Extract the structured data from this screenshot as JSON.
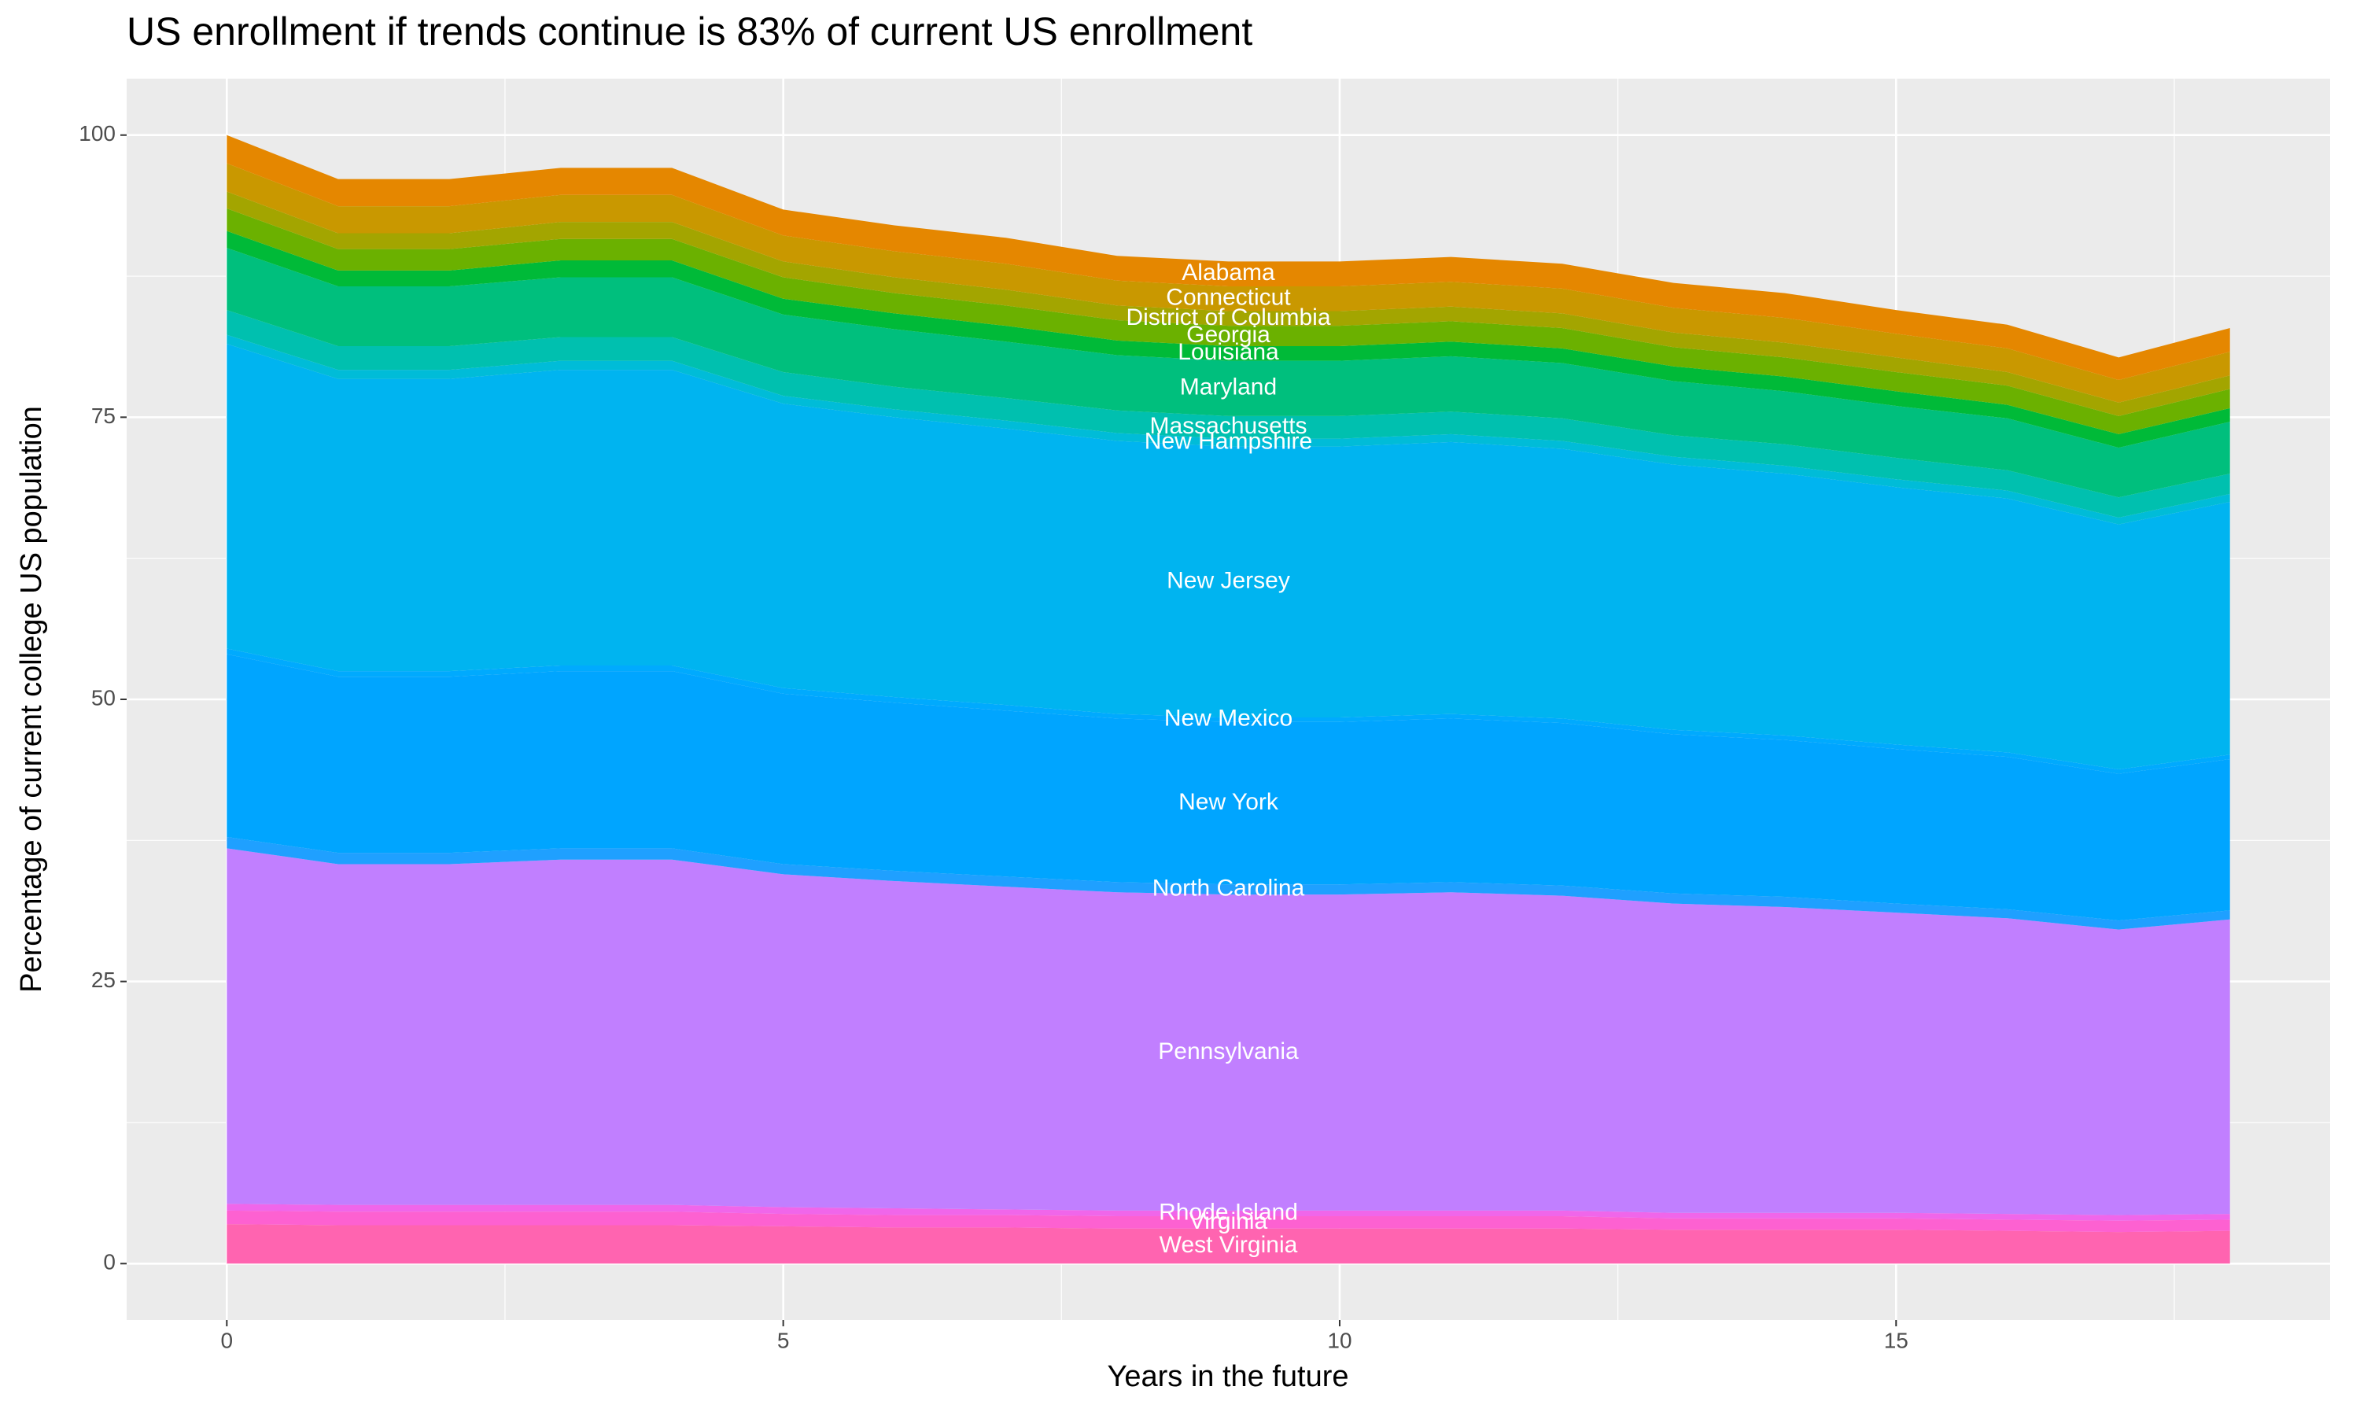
{
  "chart_data": {
    "type": "stacked_area",
    "title": "US enrollment if trends continue is 83% of current US enrollment",
    "x_label": "Years in the future",
    "y_label": "Percentage of current college US population",
    "x": [
      0,
      1,
      2,
      3,
      4,
      5,
      6,
      7,
      8,
      9,
      10,
      11,
      12,
      13,
      14,
      15,
      16,
      17,
      18
    ],
    "xlim": [
      -0.9,
      18.9
    ],
    "xticks": [
      0,
      5,
      10,
      15
    ],
    "ylim": [
      -5,
      105
    ],
    "yticks": [
      0,
      25,
      50,
      75,
      100
    ],
    "grid": true,
    "series": [
      {
        "name": "West Virginia",
        "color": "#ff64b0",
        "values": [
          3.5,
          3.4,
          3.4,
          3.4,
          3.4,
          3.3,
          3.2,
          3.2,
          3.1,
          3.1,
          3.1,
          3.1,
          3.1,
          3.0,
          3.0,
          3.0,
          2.9,
          2.8,
          2.9
        ]
      },
      {
        "name": "Virginia",
        "color": "#fd61d1",
        "values": [
          1.2,
          1.2,
          1.2,
          1.2,
          1.2,
          1.1,
          1.1,
          1.1,
          1.1,
          1.1,
          1.1,
          1.1,
          1.1,
          1.0,
          1.0,
          1.0,
          1.0,
          1.0,
          1.0
        ]
      },
      {
        "name": "Rhode Island",
        "color": "#f066ea",
        "values": [
          0.6,
          0.6,
          0.6,
          0.6,
          0.6,
          0.6,
          0.6,
          0.5,
          0.5,
          0.5,
          0.5,
          0.5,
          0.5,
          0.5,
          0.5,
          0.5,
          0.5,
          0.5,
          0.5
        ]
      },
      {
        "name": "Pennsylvania",
        "color": "#c17fff",
        "values": [
          31.5,
          30.2,
          30.2,
          30.6,
          30.6,
          29.5,
          29.0,
          28.6,
          28.2,
          28.0,
          28.0,
          28.2,
          27.9,
          27.4,
          27.1,
          26.6,
          26.2,
          25.3,
          26.1
        ]
      },
      {
        "name": "North Carolina",
        "color": "#1fa0ff",
        "values": [
          1.0,
          1.0,
          1.0,
          1.0,
          1.0,
          0.9,
          0.9,
          0.9,
          0.9,
          0.9,
          0.9,
          0.9,
          0.9,
          0.9,
          0.9,
          0.8,
          0.8,
          0.8,
          0.8
        ]
      },
      {
        "name": "New York",
        "color": "#00a5ff",
        "values": [
          16.2,
          15.6,
          15.6,
          15.7,
          15.7,
          15.1,
          14.9,
          14.7,
          14.5,
          14.4,
          14.4,
          14.5,
          14.4,
          14.1,
          13.9,
          13.7,
          13.5,
          13.0,
          13.4
        ]
      },
      {
        "name": "New Mexico",
        "color": "#00aafe",
        "values": [
          0.5,
          0.5,
          0.5,
          0.5,
          0.5,
          0.5,
          0.5,
          0.5,
          0.4,
          0.4,
          0.4,
          0.4,
          0.4,
          0.4,
          0.4,
          0.4,
          0.4,
          0.4,
          0.4
        ]
      },
      {
        "name": "New Jersey",
        "color": "#00b4f0",
        "values": [
          27.0,
          25.9,
          25.9,
          26.2,
          26.2,
          25.2,
          24.8,
          24.5,
          24.2,
          24.0,
          24.0,
          24.1,
          23.9,
          23.5,
          23.2,
          22.8,
          22.5,
          21.7,
          22.4
        ]
      },
      {
        "name": "New Hampshire",
        "color": "#00bcd8",
        "values": [
          0.8,
          0.8,
          0.8,
          0.8,
          0.8,
          0.7,
          0.7,
          0.7,
          0.7,
          0.7,
          0.7,
          0.7,
          0.7,
          0.7,
          0.7,
          0.7,
          0.7,
          0.6,
          0.7
        ]
      },
      {
        "name": "Massachusetts",
        "color": "#00c0af",
        "values": [
          2.2,
          2.1,
          2.1,
          2.1,
          2.1,
          2.1,
          2.0,
          2.0,
          2.0,
          2.0,
          2.0,
          2.0,
          2.0,
          1.9,
          1.9,
          1.9,
          1.8,
          1.8,
          1.8
        ]
      },
      {
        "name": "Maryland",
        "color": "#00bf7d",
        "values": [
          5.5,
          5.3,
          5.3,
          5.3,
          5.3,
          5.1,
          5.1,
          5.0,
          4.9,
          4.9,
          4.9,
          4.9,
          4.9,
          4.8,
          4.7,
          4.6,
          4.6,
          4.4,
          4.6
        ]
      },
      {
        "name": "Louisiana",
        "color": "#00ba38",
        "values": [
          1.5,
          1.4,
          1.4,
          1.5,
          1.5,
          1.4,
          1.4,
          1.4,
          1.3,
          1.3,
          1.3,
          1.3,
          1.3,
          1.3,
          1.3,
          1.3,
          1.2,
          1.2,
          1.2
        ]
      },
      {
        "name": "Georgia",
        "color": "#6bb100",
        "values": [
          2.0,
          1.9,
          1.9,
          1.9,
          1.9,
          1.9,
          1.8,
          1.8,
          1.8,
          1.8,
          1.8,
          1.8,
          1.8,
          1.7,
          1.7,
          1.7,
          1.7,
          1.6,
          1.7
        ]
      },
      {
        "name": "District of Columbia",
        "color": "#a3a500",
        "values": [
          1.5,
          1.4,
          1.4,
          1.5,
          1.5,
          1.4,
          1.4,
          1.4,
          1.3,
          1.3,
          1.3,
          1.3,
          1.3,
          1.3,
          1.3,
          1.3,
          1.2,
          1.2,
          1.2
        ]
      },
      {
        "name": "Connecticut",
        "color": "#c99800",
        "values": [
          2.5,
          2.4,
          2.4,
          2.4,
          2.4,
          2.3,
          2.3,
          2.3,
          2.2,
          2.2,
          2.2,
          2.2,
          2.2,
          2.2,
          2.2,
          2.1,
          2.1,
          2.0,
          2.1
        ]
      },
      {
        "name": "Alabama",
        "color": "#e58700",
        "values": [
          2.5,
          2.4,
          2.4,
          2.4,
          2.4,
          2.3,
          2.3,
          2.3,
          2.2,
          2.2,
          2.2,
          2.2,
          2.2,
          2.2,
          2.2,
          2.1,
          2.1,
          2.0,
          2.1
        ]
      }
    ]
  }
}
